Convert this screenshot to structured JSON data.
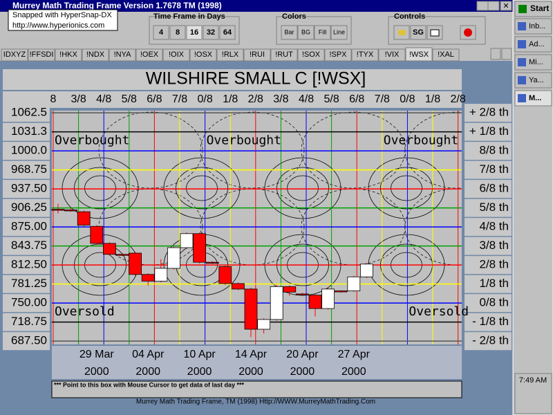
{
  "window": {
    "title": "Murrey Math Trading Frame Version 1.7678  TM (1998)",
    "snap_note": [
      "Snapped with HyperSnap-DX",
      "http://www.hyperionics.com"
    ],
    "toolbar": {
      "time_frame": {
        "label": "Time Frame in Days",
        "buttons": [
          "4",
          "8",
          "16",
          "32",
          "64"
        ],
        "pressed": 2
      },
      "colors": {
        "label": "Colors",
        "buttons": [
          "Bar",
          "BG",
          "Fill",
          "Line"
        ]
      },
      "controls": {
        "label": "Controls",
        "buttons": [
          "SG"
        ]
      }
    },
    "tabs": [
      "IDXYZ",
      "!FFSDI",
      "!HKX",
      "!NDX",
      "!NYA",
      "!OEX",
      "!OIX",
      "!OSX",
      "!RLX",
      "!RUI",
      "!RUT",
      "!SOX",
      "!SPX",
      "!TYX",
      "!VIX",
      "!WSX",
      "!XAL"
    ],
    "selected_tab": 15,
    "status_box": "*** Point to this box with Mouse Cursor to get data of last day ***",
    "footer": "Murrey Math Trading Frame, TM (1998)  Http://WWW.MurreyMathTrading.Com",
    "taskbar": {
      "start": "Start",
      "items": [
        "Inb...",
        "Ad...",
        "Mi...",
        "Ya...",
        "M..."
      ],
      "clock": "7:49 AM"
    }
  },
  "chart_data": {
    "type": "candlestick",
    "title": "WILSHIRE SMALL C [!WSX]",
    "categories": [
      null,
      null,
      null,
      "29 Mar",
      null,
      null,
      null,
      "04 Apr",
      null,
      null,
      null,
      "10 Apr",
      null,
      null,
      null,
      "14 Apr",
      null,
      null,
      null,
      "20 Apr",
      null,
      null,
      null,
      "27 Apr",
      null
    ],
    "year": "2000",
    "open": [
      904,
      903,
      900,
      876,
      848,
      830,
      832,
      797,
      786,
      807,
      841,
      864,
      817,
      810,
      782,
      773,
      707,
      723,
      777,
      765,
      763,
      741,
      770,
      770,
      793
    ],
    "close": [
      903,
      902,
      878,
      848,
      830,
      829,
      797,
      786,
      807,
      841,
      864,
      817,
      816,
      782,
      773,
      707,
      723,
      777,
      768,
      764,
      741,
      773,
      769,
      793,
      814
    ],
    "high": [
      913,
      906,
      902,
      878,
      850,
      832,
      834,
      799,
      822,
      843,
      866,
      866,
      819,
      812,
      784,
      775,
      725,
      780,
      779,
      767,
      765,
      776,
      771,
      795,
      816
    ],
    "low": [
      897,
      900,
      876,
      846,
      828,
      827,
      795,
      779,
      784,
      805,
      839,
      815,
      814,
      780,
      771,
      694,
      700,
      721,
      762,
      762,
      728,
      739,
      767,
      768,
      791
    ],
    "up_color": "#ffffff",
    "down_color": "#ff0000",
    "ylim": [
      682,
      1066
    ],
    "yticks": [
      1062.5,
      {
        "value": 1031.25,
        "label": "1031.3"
      },
      {
        "value": 1000,
        "label": "1000.0"
      },
      968.75,
      {
        "value": 937.5,
        "label": "937.50"
      },
      906.25,
      {
        "value": 875,
        "label": "875.00"
      },
      843.75,
      {
        "value": 812.5,
        "label": "812.50"
      },
      781.25,
      {
        "value": 750,
        "label": "750.00"
      },
      718.75,
      {
        "value": 687.5,
        "label": "687.50"
      }
    ],
    "right_labels": [
      "+ 2/8 th",
      "+ 1/8 th",
      "8/8 th",
      "7/8 th",
      "6/8 th",
      "5/8 th",
      "4/8 th",
      "3/8 th",
      "2/8 th",
      "1/8 th",
      "0/8 th",
      "- 1/8 th",
      "- 2/8 th"
    ],
    "grid_colors": [
      "#555555",
      "#000000",
      "#0000ff",
      "#ffff00",
      "#ff0000",
      "#00a000",
      "#0000ff",
      "#00a000",
      "#ff0000",
      "#ffff00",
      "#0000ff",
      "#000000",
      "#555555"
    ],
    "top_labels": [
      "8",
      "3/8",
      "4/8",
      "5/8",
      "6/8",
      "7/8",
      "0/8",
      "1/8",
      "2/8",
      "3/8",
      "4/8",
      "5/8",
      "6/8",
      "7/8",
      "0/8",
      "1/8",
      "2/8"
    ],
    "vline_colors": [
      "#ff0000",
      "#00a000",
      "#0000ff",
      "#00a000",
      "#ff0000",
      "#ffff00",
      "#0000ff",
      "#ffff00",
      "#ff0000",
      "#00a000",
      "#0000ff",
      "#00a000",
      "#ff0000",
      "#ffff00",
      "#0000ff",
      "#ffff00",
      "#ff0000"
    ],
    "annotations": [
      {
        "text": "Overbought",
        "value": 1031.25,
        "column": 0
      },
      {
        "text": "Overbought",
        "value": 1031.25,
        "column": 6
      },
      {
        "text": "Overbought",
        "value": 1031.25,
        "column": 13
      },
      {
        "text": "Oversold",
        "value": 750,
        "column": 0
      },
      {
        "text": "Oversold",
        "value": 750,
        "column": 14
      }
    ]
  }
}
